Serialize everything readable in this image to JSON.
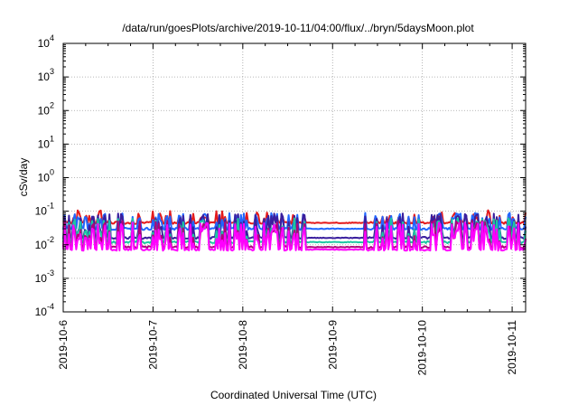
{
  "chart_data": {
    "type": "line",
    "title": "/data/run/goesPlots/archive/2019-10-11/04:00/flux/../bryn/5daysMoon.plot",
    "xlabel": "Coordinated Universal Time (UTC)",
    "ylabel": "cSv/day",
    "y_scale": "log",
    "ylim": [
      0.0001,
      10000
    ],
    "xlim": [
      0,
      5.15
    ],
    "y_ticks": [
      {
        "base": "10",
        "exp": "4"
      },
      {
        "base": "10",
        "exp": "3"
      },
      {
        "base": "10",
        "exp": "2"
      },
      {
        "base": "10",
        "exp": "1"
      },
      {
        "base": "10",
        "exp": "0"
      },
      {
        "base": "10",
        "exp": "-1"
      },
      {
        "base": "10",
        "exp": "-2"
      },
      {
        "base": "10",
        "exp": "-3"
      },
      {
        "base": "10",
        "exp": "-4"
      }
    ],
    "x_ticks": [
      "2019-10-6",
      "2019-10-7",
      "2019-10-8",
      "2019-10-9",
      "2019-10-10",
      "2019-10-11"
    ],
    "grid": true,
    "legend": "none",
    "series": [
      {
        "color": "#e41a1c",
        "baseline": 0.045,
        "spike": 0.025
      },
      {
        "color": "#2166ff",
        "baseline": 0.03,
        "spike": 0.06
      },
      {
        "color": "#3a1f9e",
        "baseline": 0.016,
        "spike": 0.07
      },
      {
        "color": "#1cc7a2",
        "baseline": 0.012,
        "spike": 0.05
      },
      {
        "color": "#b0007d",
        "baseline": 0.0085,
        "spike": 0.045
      },
      {
        "color": "#ff00ff",
        "baseline": 0.0072,
        "spike": 0.04
      }
    ]
  }
}
